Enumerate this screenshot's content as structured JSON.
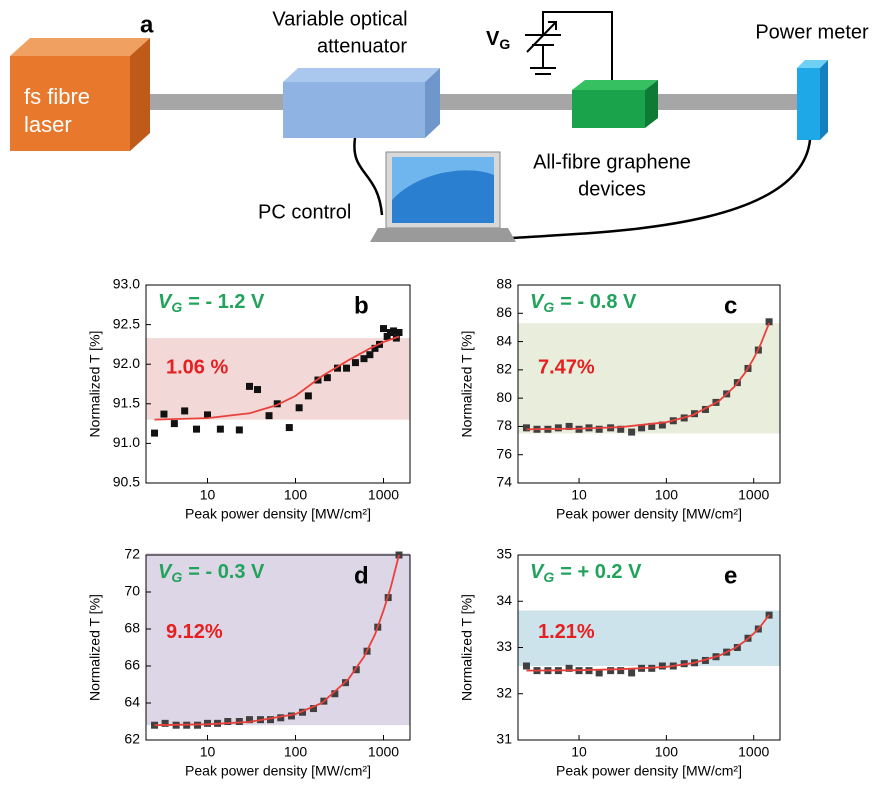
{
  "diagram": {
    "panel": "a",
    "laser": [
      "fs fibre",
      "laser"
    ],
    "attenuator": [
      "Variable optical",
      "attenuator"
    ],
    "gate_symbol": "V",
    "gate_subscript": "G",
    "power_meter": "Power meter",
    "device": [
      "All-fibre graphene",
      "devices"
    ],
    "pc": "PC control"
  },
  "chart_data": [
    {
      "type": "scatter",
      "panel": "b",
      "annotation": {
        "symbol": "V",
        "subscript": "G",
        "text": "= - 1.2 V",
        "color": "#21a35c"
      },
      "modulation_depth": "1.06 %",
      "xlabel": "Peak power density [MW/cm²]",
      "ylabel": "Normalized T [%]",
      "xlog": true,
      "xlim": [
        2,
        2000
      ],
      "xticks": [
        10,
        100,
        1000
      ],
      "ylim": [
        90.5,
        93.0
      ],
      "yticks": [
        90.5,
        {
          "value": 91,
          "label": "91.0"
        },
        91.5,
        {
          "value": 92,
          "label": "92.0"
        },
        92.5,
        {
          "value": 93,
          "label": "93.0"
        }
      ],
      "band": {
        "ylim": [
          91.3,
          92.33
        ],
        "color": "#f2d9d7"
      },
      "series": [
        {
          "type": "scatter",
          "color": "#111111",
          "x": [
            2.5,
            3.2,
            4.2,
            5.5,
            7.5,
            10,
            14,
            23,
            30,
            37,
            50,
            62,
            85,
            110,
            140,
            180,
            230,
            300,
            380,
            480,
            600,
            700,
            800,
            900,
            1000,
            1100,
            1200,
            1300,
            1400,
            1500
          ],
          "values": [
            91.13,
            91.37,
            91.25,
            91.41,
            91.18,
            91.36,
            91.18,
            91.17,
            91.72,
            91.68,
            91.35,
            91.5,
            91.2,
            91.45,
            91.6,
            91.8,
            91.83,
            91.95,
            91.95,
            92.02,
            92.07,
            92.12,
            92.2,
            92.25,
            92.45,
            92.35,
            92.4,
            92.42,
            92.33,
            92.4
          ]
        },
        {
          "type": "line",
          "color": "#e8413c",
          "x": [
            2.5,
            10,
            30,
            60,
            100,
            200,
            400,
            700,
            1000,
            1500
          ],
          "values": [
            91.3,
            91.32,
            91.38,
            91.48,
            91.6,
            91.85,
            92.05,
            92.2,
            92.28,
            92.35
          ]
        }
      ]
    },
    {
      "type": "scatter",
      "panel": "c",
      "annotation": {
        "symbol": "V",
        "subscript": "G",
        "text": "= - 0.8 V",
        "color": "#21a35c"
      },
      "modulation_depth": "7.47%",
      "xlabel": "Peak power density [MW/cm²]",
      "ylabel": "Normalized T [%]",
      "xlog": true,
      "xlim": [
        2,
        2000
      ],
      "xticks": [
        10,
        100,
        1000
      ],
      "ylim": [
        74,
        88
      ],
      "yticks": [
        74,
        76,
        78,
        80,
        82,
        84,
        86,
        88
      ],
      "band": {
        "ylim": [
          77.5,
          85.3
        ],
        "color": "#e9eddb"
      },
      "series": [
        {
          "type": "scatter",
          "color": "#404040",
          "x": [
            2.5,
            3.3,
            4.4,
            5.8,
            7.7,
            10,
            13,
            17,
            23,
            30,
            40,
            52,
            68,
            90,
            120,
            160,
            210,
            280,
            370,
            490,
            650,
            860,
            1130,
            1500
          ],
          "values": [
            77.9,
            77.8,
            77.8,
            77.9,
            78.0,
            77.8,
            77.9,
            77.8,
            77.9,
            77.8,
            77.6,
            77.9,
            78.0,
            78.1,
            78.4,
            78.6,
            78.9,
            79.2,
            79.7,
            80.3,
            81.1,
            82.1,
            83.4,
            85.4
          ]
        },
        {
          "type": "line",
          "color": "#e8413c",
          "x": [
            2.5,
            10,
            30,
            100,
            200,
            400,
            600,
            800,
            1000,
            1200,
            1500
          ],
          "values": [
            77.8,
            77.85,
            77.95,
            78.3,
            78.8,
            79.8,
            80.8,
            81.8,
            82.8,
            83.8,
            85.3
          ]
        }
      ]
    },
    {
      "type": "scatter",
      "panel": "d",
      "annotation": {
        "symbol": "V",
        "subscript": "G",
        "text": "= - 0.3 V",
        "color": "#21a35c"
      },
      "modulation_depth": "9.12%",
      "xlabel": "Peak power density [MW/cm²]",
      "ylabel": "Normalized T [%]",
      "xlog": true,
      "xlim": [
        2,
        2000
      ],
      "xticks": [
        10,
        100,
        1000
      ],
      "ylim": [
        62,
        72
      ],
      "yticks": [
        62,
        64,
        66,
        68,
        70,
        72
      ],
      "band": {
        "ylim": [
          62.8,
          72.1
        ],
        "color": "#ddd6e6"
      },
      "series": [
        {
          "type": "scatter",
          "color": "#404040",
          "x": [
            2.5,
            3.3,
            4.4,
            5.8,
            7.7,
            10,
            13,
            17,
            23,
            30,
            40,
            52,
            68,
            90,
            120,
            160,
            210,
            280,
            370,
            490,
            650,
            860,
            1130,
            1500
          ],
          "values": [
            62.8,
            62.9,
            62.8,
            62.8,
            62.8,
            62.9,
            62.9,
            63.0,
            63.0,
            63.1,
            63.1,
            63.1,
            63.2,
            63.3,
            63.5,
            63.7,
            64.1,
            64.5,
            65.1,
            65.8,
            66.8,
            68.1,
            69.7,
            72.0
          ]
        },
        {
          "type": "line",
          "color": "#e8413c",
          "x": [
            2.5,
            10,
            30,
            100,
            200,
            400,
            600,
            800,
            1000,
            1200,
            1500
          ],
          "values": [
            62.8,
            62.85,
            62.98,
            63.4,
            64.0,
            65.3,
            66.5,
            67.7,
            69.0,
            70.2,
            72.0
          ]
        }
      ]
    },
    {
      "type": "scatter",
      "panel": "e",
      "annotation": {
        "symbol": "V",
        "subscript": "G",
        "text": "= + 0.2 V",
        "color": "#21a35c"
      },
      "modulation_depth": "1.21%",
      "xlabel": "Peak power density [MW/cm²]",
      "ylabel": "Normalized T [%]",
      "xlog": true,
      "xlim": [
        2,
        2000
      ],
      "xticks": [
        10,
        100,
        1000
      ],
      "ylim": [
        31,
        35
      ],
      "yticks": [
        31,
        32,
        33,
        34,
        35
      ],
      "band": {
        "ylim": [
          32.6,
          33.8
        ],
        "color": "#cde3ec"
      },
      "series": [
        {
          "type": "scatter",
          "color": "#404040",
          "x": [
            2.5,
            3.3,
            4.4,
            5.8,
            7.7,
            10,
            13,
            17,
            23,
            30,
            40,
            52,
            68,
            90,
            120,
            160,
            210,
            280,
            370,
            490,
            650,
            860,
            1130,
            1500
          ],
          "values": [
            32.6,
            32.5,
            32.5,
            32.5,
            32.55,
            32.5,
            32.5,
            32.45,
            32.5,
            32.5,
            32.45,
            32.55,
            32.55,
            32.6,
            32.6,
            32.65,
            32.67,
            32.72,
            32.8,
            32.9,
            33.0,
            33.2,
            33.4,
            33.7
          ]
        },
        {
          "type": "line",
          "color": "#e8413c",
          "x": [
            2.5,
            10,
            30,
            100,
            200,
            400,
            600,
            800,
            1000,
            1200,
            1500
          ],
          "values": [
            32.5,
            32.51,
            32.53,
            32.58,
            32.66,
            32.82,
            32.98,
            33.14,
            33.3,
            33.46,
            33.7
          ]
        }
      ]
    }
  ]
}
